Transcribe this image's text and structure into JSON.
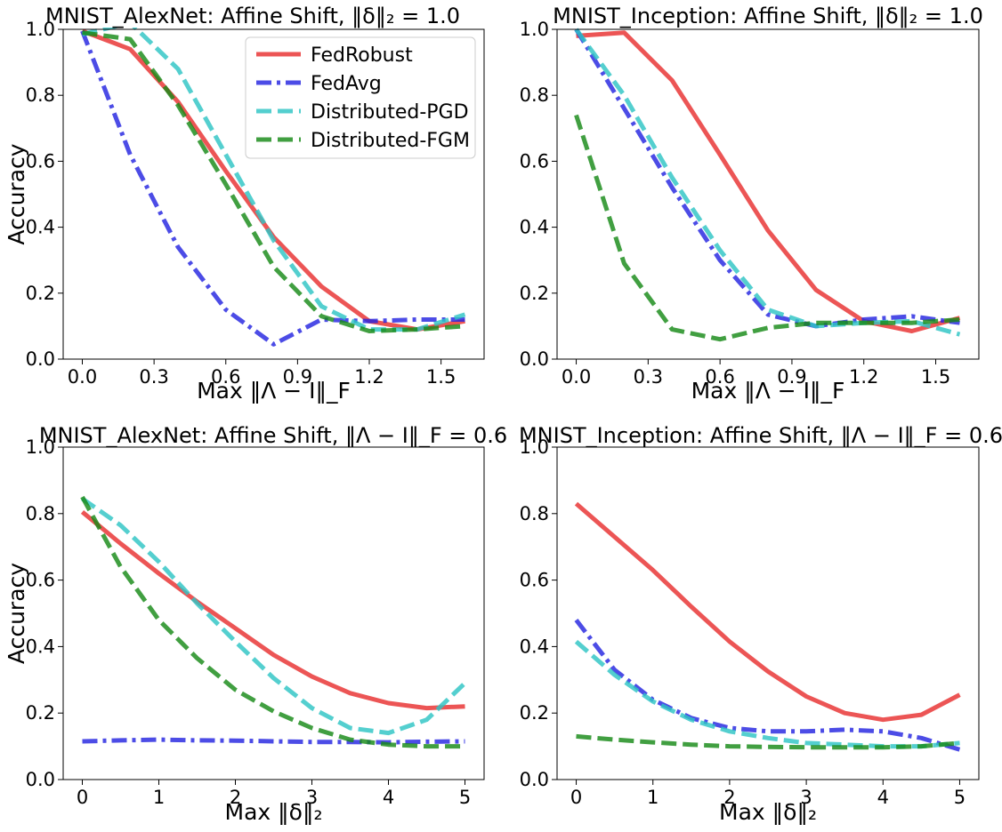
{
  "chart_data": [
    {
      "type": "line",
      "title": "MNIST_AlexNet: Affine Shift, ‖δ‖₂ = 1.0",
      "xlabel": "Max ‖Λ − I‖_F",
      "ylabel": "Accuracy",
      "xlim": [
        -0.08,
        1.68
      ],
      "ylim": [
        0,
        1
      ],
      "xticks": [
        "0.0",
        "0.3",
        "0.6",
        "0.9",
        "1.2",
        "1.5"
      ],
      "yticks": [
        "0.0",
        "0.2",
        "0.4",
        "0.6",
        "0.8",
        "1.0"
      ],
      "grid": false,
      "legend": "top-right",
      "x": [
        0.0,
        0.2,
        0.4,
        0.6,
        0.8,
        1.0,
        1.2,
        1.4,
        1.6
      ],
      "series": [
        {
          "name": "FedRobust",
          "color": "#e8302f",
          "style": "solid",
          "values": [
            0.995,
            0.94,
            0.78,
            0.57,
            0.37,
            0.22,
            0.115,
            0.09,
            0.115
          ]
        },
        {
          "name": "FedAvg",
          "color": "#2525e0",
          "style": "dashdot",
          "values": [
            0.995,
            0.62,
            0.34,
            0.15,
            0.045,
            0.12,
            0.115,
            0.12,
            0.12
          ]
        },
        {
          "name": "Distributed-PGD",
          "color": "#2ec4c4",
          "style": "dashed",
          "values": [
            0.985,
            1.02,
            0.88,
            0.62,
            0.36,
            0.16,
            0.09,
            0.09,
            0.135
          ]
        },
        {
          "name": "Distributed-FGM",
          "color": "#178a17",
          "style": "dashed",
          "values": [
            0.99,
            0.97,
            0.77,
            0.53,
            0.28,
            0.13,
            0.085,
            0.09,
            0.1
          ]
        }
      ]
    },
    {
      "type": "line",
      "title": "MNIST_Inception: Affine Shift, ‖δ‖₂ = 1.0",
      "xlabel": "Max ‖Λ − I‖_F",
      "ylabel": "",
      "xlim": [
        -0.08,
        1.68
      ],
      "ylim": [
        0,
        1
      ],
      "xticks": [
        "0.0",
        "0.3",
        "0.6",
        "0.9",
        "1.2",
        "1.5"
      ],
      "yticks": [
        "0.0",
        "0.2",
        "0.4",
        "0.6",
        "0.8",
        "1.0"
      ],
      "grid": false,
      "x": [
        0.0,
        0.2,
        0.4,
        0.6,
        0.8,
        1.0,
        1.2,
        1.4,
        1.6
      ],
      "series": [
        {
          "color": "#e8302f",
          "style": "solid",
          "values": [
            0.98,
            0.99,
            0.845,
            0.62,
            0.39,
            0.21,
            0.115,
            0.085,
            0.125
          ]
        },
        {
          "color": "#2525e0",
          "style": "dashdot",
          "values": [
            1.0,
            0.76,
            0.52,
            0.3,
            0.135,
            0.1,
            0.12,
            0.13,
            0.11
          ]
        },
        {
          "color": "#2ec4c4",
          "style": "dashed",
          "values": [
            1.0,
            0.8,
            0.55,
            0.33,
            0.15,
            0.1,
            0.11,
            0.115,
            0.075
          ]
        },
        {
          "color": "#178a17",
          "style": "dashed",
          "values": [
            0.74,
            0.29,
            0.09,
            0.06,
            0.095,
            0.11,
            0.11,
            0.11,
            0.12
          ]
        }
      ]
    },
    {
      "type": "line",
      "title": "MNIST_AlexNet: Affine Shift, ‖Λ − I‖_F = 0.6",
      "xlabel": "Max ‖δ‖₂",
      "ylabel": "Accuracy",
      "xlim": [
        -0.25,
        5.25
      ],
      "ylim": [
        0,
        1
      ],
      "xticks": [
        "0",
        "1",
        "2",
        "3",
        "4",
        "5"
      ],
      "yticks": [
        "0.0",
        "0.2",
        "0.4",
        "0.6",
        "0.8",
        "1.0"
      ],
      "grid": false,
      "x": [
        0,
        0.5,
        1,
        1.5,
        2,
        2.5,
        3,
        3.5,
        4,
        4.5,
        5
      ],
      "series": [
        {
          "color": "#e8302f",
          "style": "solid",
          "values": [
            0.805,
            0.71,
            0.62,
            0.535,
            0.455,
            0.375,
            0.31,
            0.26,
            0.23,
            0.215,
            0.22
          ]
        },
        {
          "color": "#2525e0",
          "style": "dashdot",
          "values": [
            0.115,
            0.118,
            0.12,
            0.118,
            0.117,
            0.115,
            0.113,
            0.113,
            0.112,
            0.114,
            0.115
          ]
        },
        {
          "color": "#2ec4c4",
          "style": "dashed",
          "values": [
            0.845,
            0.765,
            0.655,
            0.53,
            0.415,
            0.305,
            0.215,
            0.155,
            0.14,
            0.18,
            0.29
          ]
        },
        {
          "color": "#178a17",
          "style": "dashed",
          "values": [
            0.85,
            0.64,
            0.48,
            0.365,
            0.27,
            0.205,
            0.155,
            0.12,
            0.105,
            0.1,
            0.1
          ]
        }
      ]
    },
    {
      "type": "line",
      "title": "MNIST_Inception: Affine Shift, ‖Λ − I‖_F = 0.6",
      "xlabel": "Max ‖δ‖₂",
      "ylabel": "",
      "xlim": [
        -0.25,
        5.25
      ],
      "ylim": [
        0,
        1
      ],
      "xticks": [
        "0",
        "1",
        "2",
        "3",
        "4",
        "5"
      ],
      "yticks": [
        "0.0",
        "0.2",
        "0.4",
        "0.6",
        "0.8",
        "1.0"
      ],
      "grid": false,
      "x": [
        0,
        0.5,
        1,
        1.5,
        2,
        2.5,
        3,
        3.5,
        4,
        4.5,
        5
      ],
      "series": [
        {
          "color": "#e8302f",
          "style": "solid",
          "values": [
            0.83,
            0.73,
            0.63,
            0.52,
            0.415,
            0.325,
            0.25,
            0.2,
            0.18,
            0.195,
            0.255
          ]
        },
        {
          "color": "#2525e0",
          "style": "dashdot",
          "values": [
            0.48,
            0.33,
            0.24,
            0.185,
            0.155,
            0.145,
            0.145,
            0.15,
            0.145,
            0.125,
            0.09
          ]
        },
        {
          "color": "#2ec4c4",
          "style": "dashed",
          "values": [
            0.415,
            0.315,
            0.235,
            0.18,
            0.145,
            0.125,
            0.11,
            0.105,
            0.1,
            0.1,
            0.11
          ]
        },
        {
          "color": "#178a17",
          "style": "dashed",
          "values": [
            0.13,
            0.12,
            0.112,
            0.105,
            0.1,
            0.098,
            0.097,
            0.097,
            0.097,
            0.1,
            0.11
          ]
        }
      ]
    }
  ]
}
